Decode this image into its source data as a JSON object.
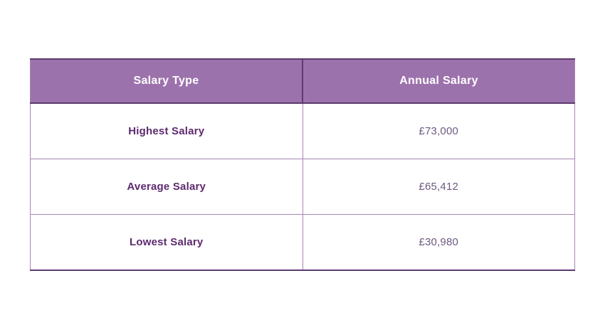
{
  "chart_data": {
    "type": "table",
    "columns": [
      "Salary Type",
      "Annual Salary"
    ],
    "rows": [
      [
        "Highest Salary",
        "£73,000"
      ],
      [
        "Average Salary",
        "£65,412"
      ],
      [
        "Lowest Salary",
        "£30,980"
      ]
    ]
  },
  "colors": {
    "header_bg": "#9c72ac",
    "header_text": "#ffffff",
    "row_label_text": "#5e2a6e",
    "row_value_text": "#6d5880",
    "border_dark": "#5e3a6d",
    "border_light": "#a685b3",
    "page_background": "#ffffff"
  }
}
